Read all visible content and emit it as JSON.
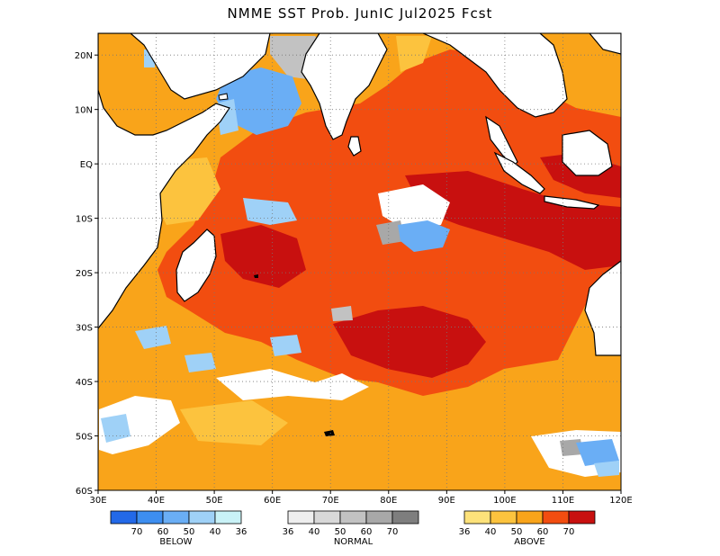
{
  "title": "NMME SST Prob. JunIC  Jul2025 Fcst",
  "map": {
    "lon_range": [
      30,
      120
    ],
    "lat_range": [
      -60,
      24
    ],
    "lon_ticks": [
      {
        "value": 30,
        "label": "30E"
      },
      {
        "value": 40,
        "label": "40E"
      },
      {
        "value": 50,
        "label": "50E"
      },
      {
        "value": 60,
        "label": "60E"
      },
      {
        "value": 70,
        "label": "70E"
      },
      {
        "value": 80,
        "label": "80E"
      },
      {
        "value": 90,
        "label": "90E"
      },
      {
        "value": 100,
        "label": "100E"
      },
      {
        "value": 110,
        "label": "110E"
      },
      {
        "value": 120,
        "label": "120E"
      }
    ],
    "lat_ticks": [
      {
        "value": 20,
        "label": "20N"
      },
      {
        "value": 10,
        "label": "10N"
      },
      {
        "value": 0,
        "label": "EQ"
      },
      {
        "value": -10,
        "label": "10S"
      },
      {
        "value": -20,
        "label": "20S"
      },
      {
        "value": -30,
        "label": "30S"
      },
      {
        "value": -40,
        "label": "40S"
      },
      {
        "value": -50,
        "label": "50S"
      },
      {
        "value": -60,
        "label": "60S"
      }
    ],
    "gridlines": "dotted",
    "ocean_fill": "#f9a41a"
  },
  "legend": {
    "below": {
      "title": "BELOW",
      "colors": [
        "#2369e8",
        "#3d8ef0",
        "#6aaef5",
        "#9fd1f7",
        "#c9f2f7"
      ],
      "labels": [
        "70",
        "60",
        "50",
        "40",
        "36"
      ]
    },
    "normal": {
      "title": "NORMAL",
      "colors": [
        "#eeeeee",
        "#d8d8d8",
        "#c2c2c2",
        "#a8a8a8",
        "#7e7e7e"
      ],
      "labels": [
        "36",
        "40",
        "50",
        "60",
        "70"
      ]
    },
    "above": {
      "title": "ABOVE",
      "colors": [
        "#fde27a",
        "#fcc33e",
        "#f9a41a",
        "#f24d10",
        "#c8100f"
      ],
      "labels": [
        "36",
        "40",
        "50",
        "60",
        "70"
      ]
    }
  }
}
